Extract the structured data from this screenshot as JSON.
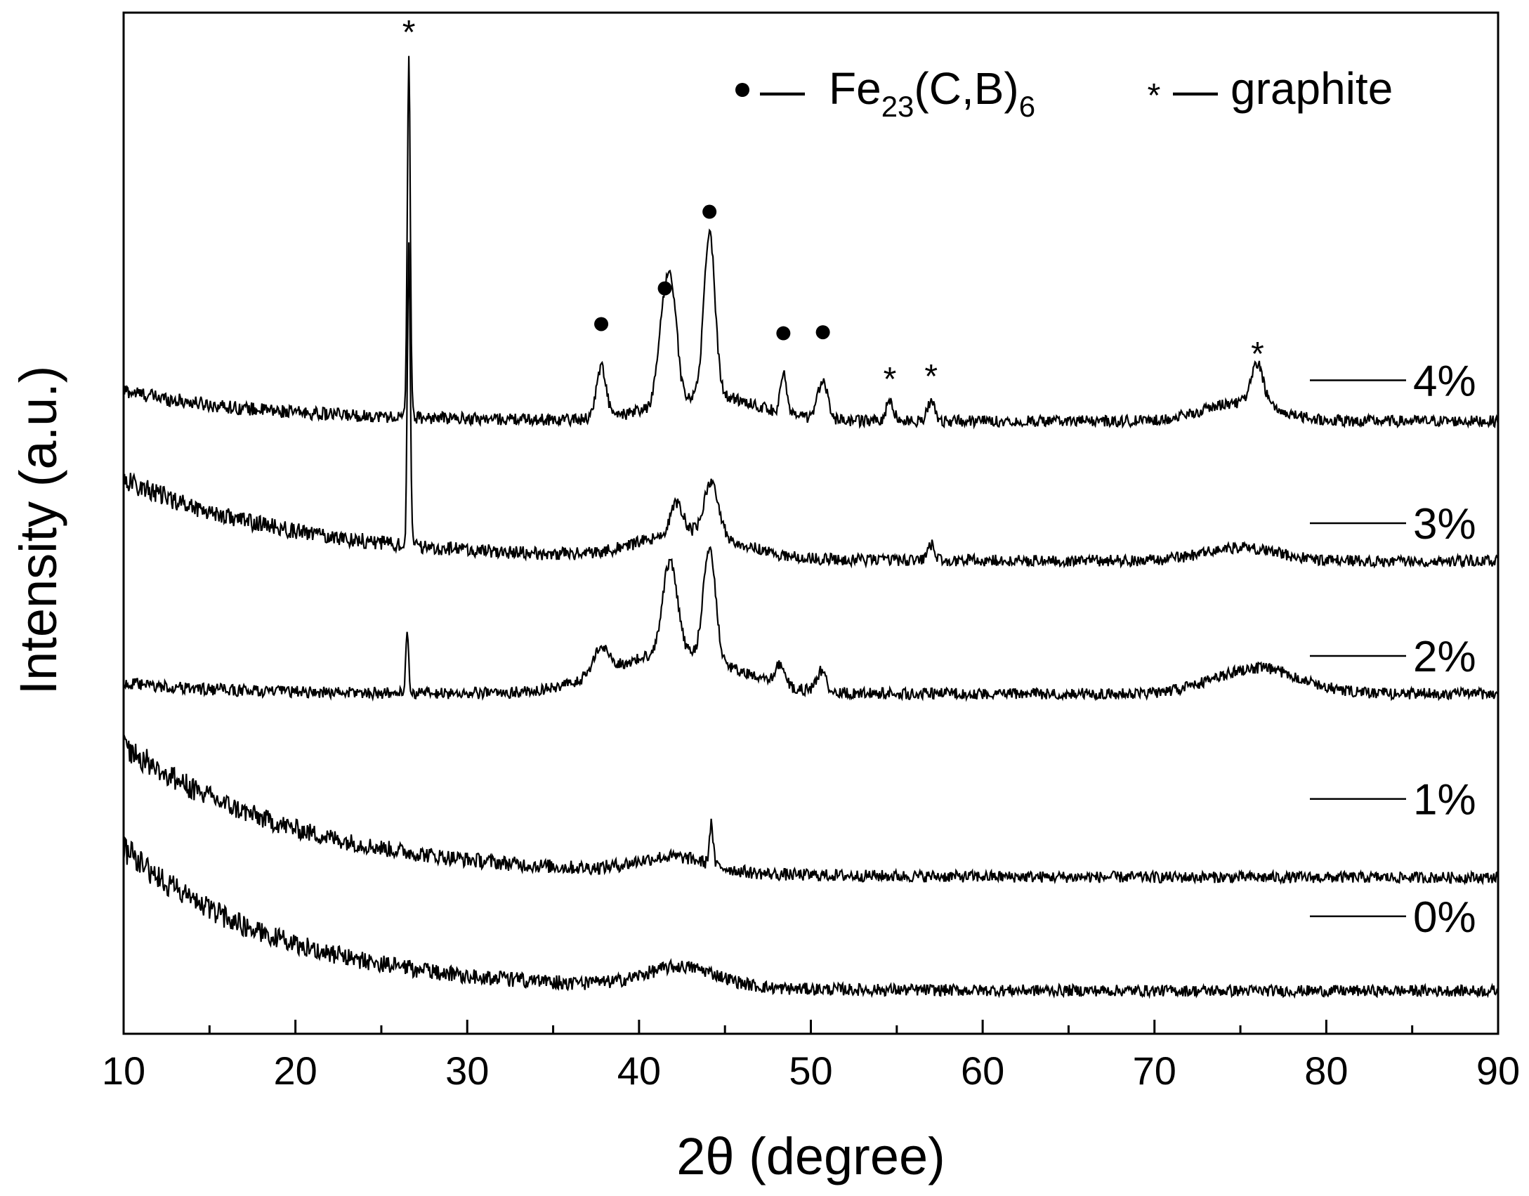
{
  "chart_data": {
    "type": "line",
    "xlabel": "2θ  (degree)",
    "ylabel": "Intensity (a.u.)",
    "xlim": [
      10,
      90
    ],
    "ylim": [
      0,
      100
    ],
    "x_ticks": [
      10,
      20,
      30,
      40,
      50,
      60,
      70,
      80,
      90
    ],
    "y_ticks_shown": false,
    "grid": false,
    "legend_placement": "top-right",
    "legend": [
      {
        "symbol": "●",
        "dash": "—",
        "label_main": "Fe",
        "sub1": "23",
        "mid": "(C,B)",
        "sub2": "6"
      },
      {
        "symbol": "*",
        "dash": "—",
        "label": "graphite"
      }
    ],
    "series": [
      {
        "name": "4%",
        "baseline": 60,
        "label_y": 64,
        "peaks": [
          [
            26.6,
            35.6,
            0.12
          ],
          [
            37.8,
            5,
            0.4
          ],
          [
            41.5,
            10,
            0.5
          ],
          [
            42.0,
            7,
            0.4
          ],
          [
            44.1,
            16,
            0.45
          ],
          [
            48.4,
            4,
            0.25
          ],
          [
            50.7,
            4,
            0.4
          ],
          [
            54.6,
            2,
            0.3
          ],
          [
            57.0,
            2,
            0.3
          ],
          [
            76.0,
            4,
            0.5
          ]
        ],
        "broad": [
          [
            44.0,
            2.5,
            4.0
          ],
          [
            75.0,
            1.8,
            3.0
          ]
        ],
        "lowbg": [
          3.0,
          8
        ]
      },
      {
        "name": "3%",
        "baseline": 46.3,
        "label_y": 50,
        "peaks": [
          [
            26.6,
            29,
            0.12
          ],
          [
            42.2,
            3,
            0.5
          ],
          [
            44.2,
            5,
            0.6
          ],
          [
            57.0,
            1.5,
            0.3
          ]
        ],
        "broad": [
          [
            43.0,
            2.5,
            4.0
          ],
          [
            75.0,
            1.3,
            3.0
          ]
        ],
        "lowbg": [
          8.0,
          10
        ]
      },
      {
        "name": "2%",
        "baseline": 33.3,
        "label_y": 37,
        "peaks": [
          [
            26.5,
            6,
            0.12
          ],
          [
            37.8,
            2.5,
            0.7
          ],
          [
            41.8,
            9,
            0.6
          ],
          [
            44.1,
            11,
            0.5
          ],
          [
            48.2,
            2,
            0.4
          ],
          [
            50.6,
            2,
            0.4
          ]
        ],
        "broad": [
          [
            42.0,
            4.0,
            5.0
          ],
          [
            76.0,
            2.5,
            3.5
          ]
        ],
        "lowbg": [
          1.0,
          6
        ]
      },
      {
        "name": "1%",
        "baseline": 15.3,
        "label_y": 23,
        "peaks": [
          [
            44.2,
            4,
            0.15
          ]
        ],
        "broad": [
          [
            42.0,
            1.5,
            3.0
          ]
        ],
        "lowbg": [
          13.0,
          10
        ]
      },
      {
        "name": "0%",
        "baseline": 4.2,
        "label_y": 11.5,
        "peaks": [],
        "broad": [
          [
            42.5,
            2.0,
            3.0
          ]
        ],
        "lowbg": [
          14.0,
          9
        ]
      }
    ],
    "annotations": [
      {
        "symbol": "*",
        "x": 26.6,
        "y": 98.5
      },
      {
        "symbol": "●",
        "x": 37.8,
        "y": 69.5
      },
      {
        "symbol": "●",
        "x": 41.5,
        "y": 73.0
      },
      {
        "symbol": "●",
        "x": 44.1,
        "y": 80.5
      },
      {
        "symbol": "●",
        "x": 48.4,
        "y": 68.6
      },
      {
        "symbol": "●",
        "x": 50.7,
        "y": 68.7
      },
      {
        "symbol": "*",
        "x": 54.6,
        "y": 64.5
      },
      {
        "symbol": "*",
        "x": 57.0,
        "y": 64.8
      },
      {
        "symbol": "*",
        "x": 76.0,
        "y": 67.0
      }
    ]
  }
}
